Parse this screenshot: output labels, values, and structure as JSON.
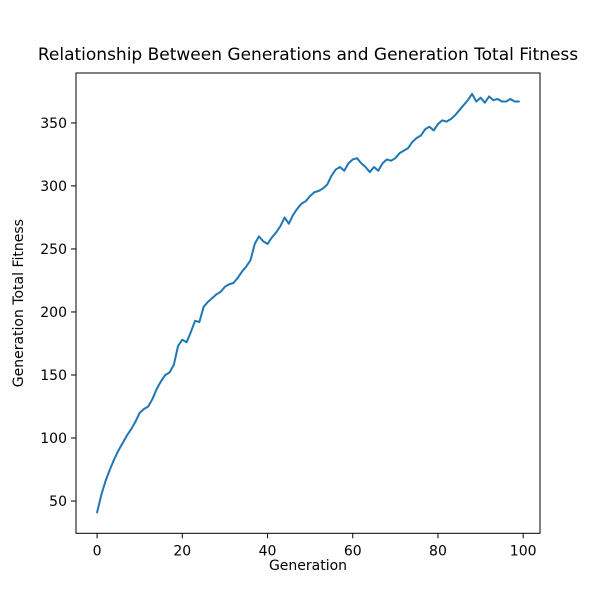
{
  "chart_data": {
    "type": "line",
    "title": "Relationship Between Generations and Generation Total Fitness",
    "xlabel": "Generation",
    "ylabel": "Generation Total Fitness",
    "x_start": 0,
    "x_step": 1,
    "series": [
      {
        "color": "#1f77b4",
        "values": [
          41,
          55,
          66,
          75,
          83,
          90,
          96,
          102,
          107,
          113,
          120,
          123,
          125,
          131,
          139,
          145,
          150,
          152,
          158,
          173,
          178,
          176,
          184,
          193,
          192,
          204,
          208,
          211,
          214,
          216,
          220,
          222,
          223,
          227,
          232,
          236,
          241,
          254,
          260,
          256,
          254,
          259,
          263,
          268,
          275,
          270,
          277,
          282,
          286,
          288,
          292,
          295,
          296,
          298,
          301,
          308,
          313,
          315,
          312,
          318,
          321,
          322,
          318,
          315,
          311,
          315,
          312,
          318,
          321,
          320,
          322,
          326,
          328,
          330,
          335,
          338,
          340,
          345,
          347,
          344,
          349,
          352,
          351,
          353,
          356,
          360,
          364,
          368,
          373,
          367,
          370,
          366,
          371,
          368,
          369,
          367,
          367,
          369,
          367,
          367
        ]
      }
    ],
    "xticks": [
      0,
      20,
      40,
      60,
      80,
      100
    ],
    "yticks": [
      50,
      100,
      150,
      200,
      250,
      300,
      350
    ],
    "xlim": [
      -4.95,
      103.95
    ],
    "ylim": [
      24.4,
      389.6
    ],
    "grid": false,
    "background": "#ffffff",
    "text_color": "#000000",
    "spine_color": "#000000"
  }
}
